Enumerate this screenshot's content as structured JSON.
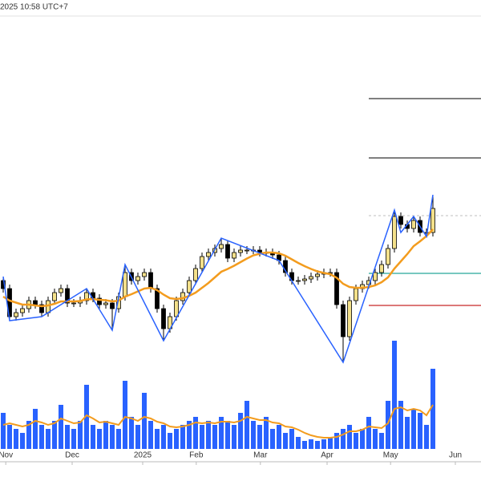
{
  "header": {
    "timestamp": "2025 10:58 UTC+7"
  },
  "chart_data": {
    "type": "candlestick",
    "up_color": "#f3e08a",
    "down_color": "#000000",
    "ma_color": "#f39c1e",
    "zigzag_color": "#2962ff",
    "volume_color": "#2962ff",
    "xlim": [
      -0.5,
      74.5
    ],
    "xticks": [
      {
        "value": 0.4,
        "label": "Nov"
      },
      {
        "value": 10.75,
        "label": "Dec"
      },
      {
        "value": 21.75,
        "label": "2025"
      },
      {
        "value": 30.1,
        "label": "Feb"
      },
      {
        "value": 40.1,
        "label": "Mar"
      },
      {
        "value": 50.5,
        "label": "Apr"
      },
      {
        "value": 60.4,
        "label": "May"
      },
      {
        "value": 70.5,
        "label": "Jun"
      }
    ],
    "ylim": [
      0,
      90
    ],
    "open": [
      24,
      22,
      15,
      16,
      17,
      19,
      18,
      16,
      19,
      21,
      22,
      18.4,
      18.4,
      19,
      21,
      19.6,
      18,
      18.4,
      17,
      20,
      26,
      24,
      25,
      26,
      22,
      17,
      12,
      15,
      19,
      21,
      24,
      27,
      30,
      31,
      32,
      33,
      29.6,
      31,
      31.6,
      31.6,
      31.6,
      31,
      31,
      30.4,
      29,
      26,
      24,
      24,
      24.4,
      25,
      25.6,
      26,
      26,
      18,
      10,
      19,
      22,
      23,
      24,
      26,
      28,
      32,
      40,
      38,
      37,
      39,
      36,
      36
    ],
    "high": [
      25,
      23,
      17,
      18,
      20,
      20,
      19,
      20,
      22,
      23,
      23,
      19.4,
      20,
      22,
      22,
      20.6,
      19.4,
      19.4,
      21,
      28,
      27,
      26,
      27,
      27,
      23,
      18,
      16,
      20,
      22,
      25,
      28,
      31,
      32,
      33,
      34.6,
      34,
      32,
      32.6,
      32.6,
      32.6,
      32.6,
      32,
      32,
      31.4,
      30,
      27,
      25,
      25.4,
      26,
      26.6,
      27,
      27,
      27,
      19,
      20,
      23,
      24,
      25,
      27,
      29,
      33,
      41.6,
      41,
      39,
      40,
      40,
      37,
      45.4
    ],
    "low": [
      21,
      14,
      14,
      15,
      16,
      17,
      15,
      15,
      18,
      20,
      17.4,
      17.4,
      17.4,
      18,
      18.6,
      17,
      17,
      11.6,
      16,
      19,
      23,
      23,
      24,
      21,
      16,
      9,
      11,
      14,
      18,
      20,
      23,
      26,
      29,
      30,
      31,
      28.6,
      28.6,
      30,
      30.6,
      30.6,
      30,
      30,
      29.4,
      28,
      25,
      23,
      23,
      23,
      23.4,
      24,
      24.6,
      25,
      17,
      3.6,
      9,
      18,
      21,
      22,
      23,
      25,
      27,
      31,
      37,
      36,
      36,
      35,
      35,
      35
    ],
    "close": [
      22,
      15,
      16,
      17,
      19,
      18,
      16,
      19,
      21,
      22,
      18.4,
      18.4,
      19,
      21,
      19.6,
      18,
      18.4,
      17,
      20,
      26,
      24,
      25,
      26,
      22,
      17,
      12,
      15,
      19,
      21,
      24,
      27,
      30,
      31,
      32,
      33,
      29.6,
      31,
      31.6,
      31.6,
      31.6,
      31,
      31,
      30.4,
      29,
      26,
      24,
      24,
      24.4,
      25,
      25.6,
      26,
      26,
      18,
      10,
      19,
      22,
      23,
      24,
      26,
      28,
      32,
      40,
      38,
      37,
      39,
      36,
      36,
      42
    ],
    "ma": [
      20,
      19,
      18.5,
      18,
      18,
      17.8,
      17.6,
      17.8,
      18.2,
      18.8,
      18.8,
      18.8,
      18.9,
      19.3,
      19.4,
      19.2,
      19.1,
      18.8,
      19,
      20,
      20.6,
      21.3,
      22,
      22.2,
      21.6,
      20.5,
      19.6,
      19.4,
      19.6,
      20.2,
      21,
      22.2,
      23.4,
      24.8,
      26.2,
      26.9,
      27.7,
      28.6,
      29.5,
      30.3,
      30.7,
      31,
      31,
      30.8,
      30.2,
      29.3,
      28.4,
      27.6,
      26.9,
      26.3,
      25.9,
      25.6,
      24.7,
      23.2,
      22.4,
      22.2,
      22.2,
      22.4,
      22.8,
      23.6,
      24.8,
      27,
      28.8,
      30.6,
      32.6,
      33.8,
      35.1,
      36.8
    ],
    "zigzag_x": [
      0,
      1,
      6,
      13,
      17,
      19,
      25,
      34,
      43,
      53,
      61,
      62,
      64,
      66,
      67
    ],
    "zigzag_y": [
      25,
      14,
      15,
      22,
      11.6,
      28,
      9,
      34.6,
      29,
      3.6,
      41.6,
      36,
      40,
      35,
      45.4
    ],
    "levels": [
      {
        "value": 69.4,
        "color": "#333333",
        "dashed": false
      },
      {
        "value": 54.6,
        "color": "#333333",
        "dashed": false
      },
      {
        "value": 40.2,
        "color": "#cccccc",
        "dashed": true
      },
      {
        "value": 25.8,
        "color": "#26a69a",
        "dashed": false
      },
      {
        "value": 17.8,
        "color": "#c62828",
        "dashed": false
      }
    ],
    "levels_start": 57,
    "volume_ylim": [
      0,
      140
    ],
    "volume": [
      45,
      30,
      25,
      20,
      35,
      50,
      30,
      25,
      35,
      55,
      30,
      25,
      35,
      80,
      30,
      25,
      35,
      30,
      25,
      85,
      40,
      30,
      70,
      35,
      25,
      30,
      20,
      25,
      30,
      35,
      40,
      30,
      35,
      30,
      40,
      35,
      30,
      45,
      60,
      35,
      30,
      40,
      25,
      30,
      20,
      25,
      15,
      10,
      12,
      10,
      12,
      15,
      20,
      25,
      30,
      20,
      25,
      40,
      25,
      20,
      60,
      135,
      60,
      40,
      50,
      45,
      30,
      100
    ],
    "volume_ma": [
      30,
      32,
      30,
      28,
      30,
      35,
      33,
      30,
      32,
      38,
      35,
      32,
      33,
      42,
      38,
      33,
      34,
      32,
      30,
      40,
      38,
      35,
      40,
      38,
      34,
      32,
      28,
      27,
      28,
      30,
      33,
      32,
      33,
      32,
      34,
      34,
      33,
      35,
      40,
      38,
      36,
      36,
      33,
      32,
      28,
      27,
      24,
      20,
      17,
      15,
      14,
      14,
      15,
      18,
      22,
      22,
      24,
      28,
      27,
      26,
      32,
      50,
      52,
      48,
      50,
      48,
      42,
      55
    ]
  }
}
